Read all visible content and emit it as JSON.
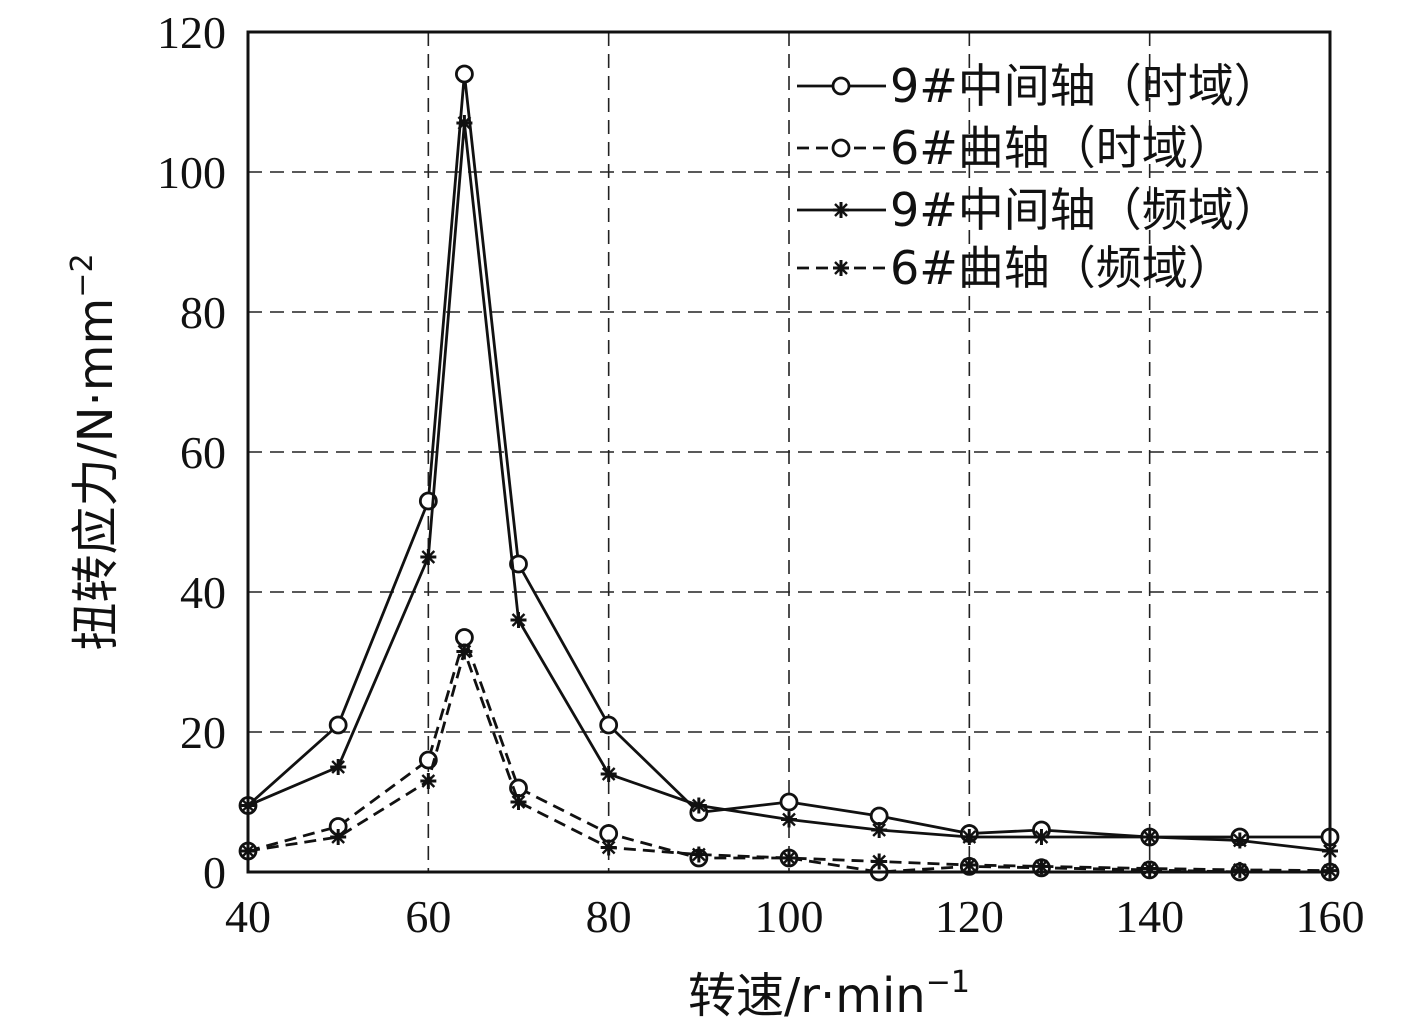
{
  "chart_data": {
    "type": "line",
    "xlabel": "转速/r·min",
    "xlabel_sup": "−1",
    "ylabel": "扭转应力/N·mm",
    "ylabel_sup": "−2",
    "xlim": [
      40,
      160
    ],
    "ylim": [
      0,
      120
    ],
    "xticks": [
      40,
      60,
      80,
      100,
      120,
      140,
      160
    ],
    "yticks": [
      0,
      20,
      40,
      60,
      80,
      100,
      120
    ],
    "grid": true,
    "legend_position": "top-right",
    "series": [
      {
        "name": "9#中间轴（时域）",
        "marker": "circle",
        "line": "solid",
        "x": [
          40,
          50,
          60,
          64,
          70,
          80,
          90,
          100,
          110,
          120,
          128,
          140,
          150,
          160
        ],
        "y": [
          9.5,
          21,
          53,
          114,
          44,
          21,
          8.5,
          10,
          8,
          5.5,
          6,
          5,
          5,
          5
        ]
      },
      {
        "name": "6#曲轴（时域）",
        "marker": "circle",
        "line": "dashed",
        "x": [
          40,
          50,
          60,
          64,
          70,
          80,
          90,
          100,
          110,
          120,
          128,
          140,
          150,
          160
        ],
        "y": [
          3,
          6.5,
          16,
          33.5,
          12,
          5.5,
          2,
          2,
          0,
          0.8,
          0.6,
          0.3,
          0,
          0
        ]
      },
      {
        "name": "9#中间轴（频域）",
        "marker": "star",
        "line": "solid",
        "x": [
          40,
          50,
          60,
          64,
          70,
          80,
          90,
          100,
          110,
          120,
          128,
          140,
          150,
          160
        ],
        "y": [
          9.5,
          15,
          45,
          107,
          36,
          14,
          9.5,
          7.5,
          6,
          5,
          5,
          5,
          4.5,
          3
        ]
      },
      {
        "name": "6#曲轴（频域）",
        "marker": "star",
        "line": "dashed",
        "x": [
          40,
          50,
          60,
          64,
          70,
          80,
          90,
          100,
          110,
          120,
          128,
          140,
          150,
          160
        ],
        "y": [
          3,
          5,
          13,
          31.5,
          10,
          3.5,
          2.5,
          2,
          1.5,
          1,
          0.8,
          0.5,
          0.3,
          0.2
        ]
      }
    ]
  }
}
